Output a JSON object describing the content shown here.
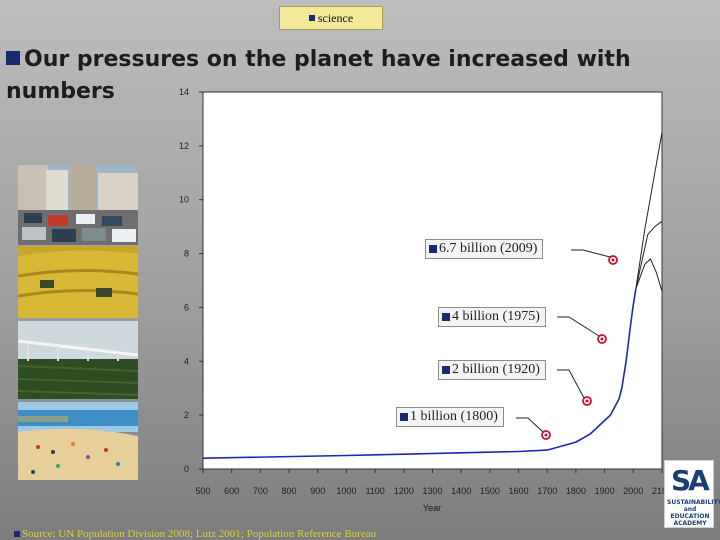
{
  "tag": {
    "label": "science"
  },
  "heading": {
    "text": "Our pressures on the planet have increased with numbers"
  },
  "photos": [
    {
      "name": "traffic-jam-photo",
      "subject": "city traffic"
    },
    {
      "name": "wheat-harvest-photo",
      "subject": "crop harvest"
    },
    {
      "name": "irrigation-photo",
      "subject": "irrigation field"
    },
    {
      "name": "crowded-beach-photo",
      "subject": "crowded beach"
    }
  ],
  "callouts": [
    {
      "label": "6.7 billion (2009)",
      "year": 2009,
      "value": 6.7
    },
    {
      "label": "4 billion (1975)",
      "year": 1975,
      "value": 4
    },
    {
      "label": "2 billion (1920)",
      "year": 1920,
      "value": 2
    },
    {
      "label": "1 billion (1800)",
      "year": 1800,
      "value": 1
    }
  ],
  "source": {
    "text": "Source: UN Population Division 2008; Lutz 2001; Population Reference Bureau"
  },
  "logo": {
    "mark": "SA",
    "text": "SUSTAINABILITY and EDUCATION ACADEMY"
  },
  "colors": {
    "line": "#1a2ab0",
    "accent": "#1a2a6e",
    "marker": "#c8102e"
  },
  "chart_data": {
    "type": "line",
    "xlabel": "Year",
    "ylabel": "",
    "xlim": [
      500,
      2100
    ],
    "ylim": [
      0,
      14
    ],
    "x_ticks": [
      500,
      600,
      700,
      800,
      900,
      1000,
      1100,
      1200,
      1300,
      1400,
      1500,
      1600,
      1700,
      1800,
      1900,
      2000,
      2100
    ],
    "y_ticks": [
      0,
      2,
      4,
      6,
      8,
      10,
      12,
      14
    ],
    "grid": false,
    "series": [
      {
        "x": [
          500,
          1000,
          1200,
          1400,
          1600,
          1700,
          1750,
          1800,
          1850,
          1900,
          1920,
          1950,
          1960,
          1975,
          1990,
          2000,
          2009
        ],
        "y": [
          0.4,
          0.5,
          0.55,
          0.6,
          0.65,
          0.7,
          0.85,
          1.0,
          1.3,
          1.8,
          2.0,
          2.6,
          3.0,
          4.0,
          5.3,
          6.1,
          6.7
        ]
      },
      {
        "x": [
          2009,
          2040,
          2075,
          2100
        ],
        "y": [
          6.7,
          8.9,
          11.0,
          12.5
        ]
      },
      {
        "x": [
          2009,
          2050,
          2075,
          2100
        ],
        "y": [
          6.7,
          8.7,
          9.0,
          9.2
        ]
      },
      {
        "x": [
          2009,
          2040,
          2060,
          2080,
          2100
        ],
        "y": [
          6.7,
          7.6,
          7.8,
          7.3,
          6.6
        ]
      }
    ],
    "markers": [
      {
        "year": 2009,
        "value": 6.7
      },
      {
        "year": 1975,
        "value": 4
      },
      {
        "year": 1920,
        "value": 2
      },
      {
        "year": 1800,
        "value": 1
      }
    ]
  }
}
